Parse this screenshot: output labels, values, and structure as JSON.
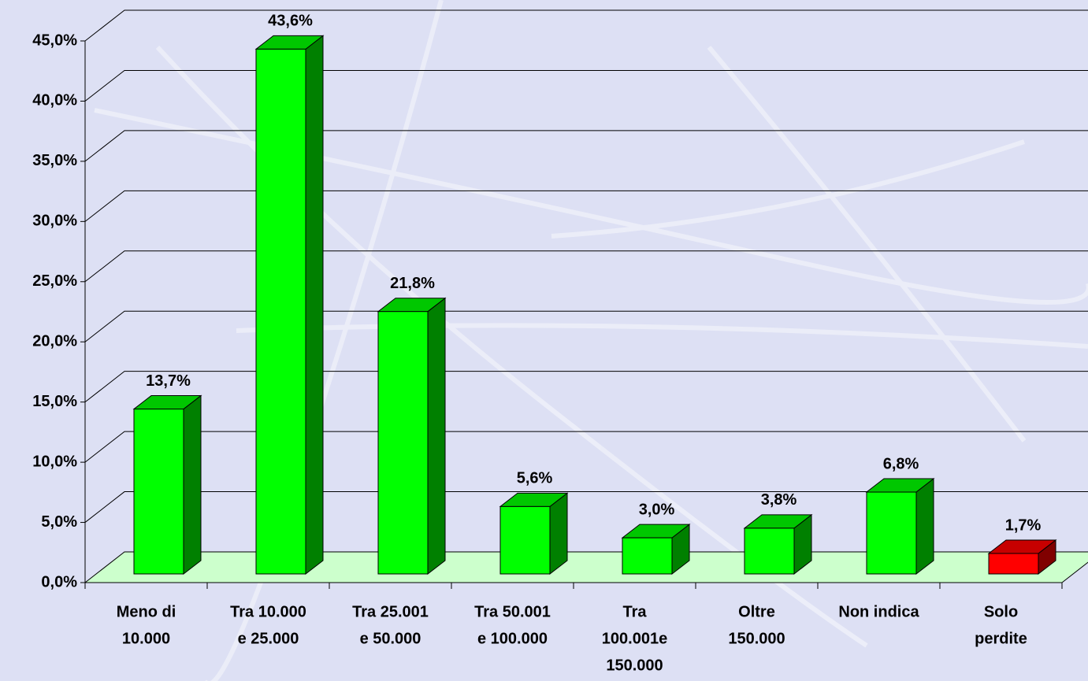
{
  "chart_data": {
    "type": "bar3d",
    "categories": [
      [
        "Meno di",
        "10.000"
      ],
      [
        "Tra 10.000",
        "e 25.000"
      ],
      [
        "Tra 25.001",
        "e 50.000"
      ],
      [
        "Tra 50.001",
        "e 100.000"
      ],
      [
        "Tra",
        "100.001e",
        "150.000"
      ],
      [
        "Oltre",
        "150.000"
      ],
      [
        "Non indica"
      ],
      [
        "Solo",
        "perdite"
      ]
    ],
    "values": [
      13.7,
      43.6,
      21.8,
      5.6,
      3.0,
      3.8,
      6.8,
      1.7
    ],
    "value_labels": [
      "13,7%",
      "43,6%",
      "21,8%",
      "5,6%",
      "3,0%",
      "3,8%",
      "6,8%",
      "1,7%"
    ],
    "colors": [
      "#00ff00",
      "#00ff00",
      "#00ff00",
      "#00ff00",
      "#00ff00",
      "#00ff00",
      "#00ff00",
      "#ff0000"
    ],
    "ylim": [
      0,
      45
    ],
    "yticks": [
      {
        "value": 0,
        "label": "0,0%"
      },
      {
        "value": 5,
        "label": "5,0%"
      },
      {
        "value": 10,
        "label": "10,0%"
      },
      {
        "value": 15,
        "label": "15,0%"
      },
      {
        "value": 20,
        "label": "20,0%"
      },
      {
        "value": 25,
        "label": "25,0%"
      },
      {
        "value": 30,
        "label": "30,0%"
      },
      {
        "value": 35,
        "label": "35,0%"
      },
      {
        "value": 40,
        "label": "40,0%"
      },
      {
        "value": 45,
        "label": "45,0%"
      }
    ],
    "grid": true
  }
}
